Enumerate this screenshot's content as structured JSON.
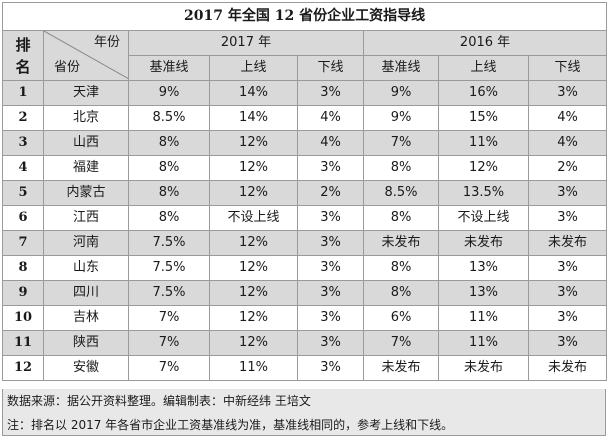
{
  "title": "2017 年全国 12 省份企业工资指导线",
  "header": {
    "rank_label_1": "排",
    "rank_label_2": "名",
    "diag_year": "年份",
    "diag_province": "省份",
    "year_2017": "2017 年",
    "year_2016": "2016 年",
    "sub": [
      "基准线",
      "上线",
      "下线",
      "基准线",
      "上线",
      "下线"
    ]
  },
  "rows": [
    {
      "rank": "1",
      "province": "天津",
      "v": [
        "9%",
        "14%",
        "3%",
        "9%",
        "16%",
        "3%"
      ]
    },
    {
      "rank": "2",
      "province": "北京",
      "v": [
        "8.5%",
        "14%",
        "4%",
        "9%",
        "15%",
        "4%"
      ]
    },
    {
      "rank": "3",
      "province": "山西",
      "v": [
        "8%",
        "12%",
        "4%",
        "7%",
        "11%",
        "4%"
      ]
    },
    {
      "rank": "4",
      "province": "福建",
      "v": [
        "8%",
        "12%",
        "3%",
        "8%",
        "12%",
        "2%"
      ]
    },
    {
      "rank": "5",
      "province": "内蒙古",
      "v": [
        "8%",
        "12%",
        "2%",
        "8.5%",
        "13.5%",
        "3%"
      ]
    },
    {
      "rank": "6",
      "province": "江西",
      "v": [
        "8%",
        "不设上线",
        "3%",
        "8%",
        "不设上线",
        "3%"
      ]
    },
    {
      "rank": "7",
      "province": "河南",
      "v": [
        "7.5%",
        "12%",
        "3%",
        "未发布",
        "未发布",
        "未发布"
      ]
    },
    {
      "rank": "8",
      "province": "山东",
      "v": [
        "7.5%",
        "12%",
        "3%",
        "8%",
        "13%",
        "3%"
      ]
    },
    {
      "rank": "9",
      "province": "四川",
      "v": [
        "7.5%",
        "12%",
        "3%",
        "8%",
        "13%",
        "3%"
      ]
    },
    {
      "rank": "10",
      "province": "吉林",
      "v": [
        "7%",
        "12%",
        "3%",
        "6%",
        "11%",
        "3%"
      ]
    },
    {
      "rank": "11",
      "province": "陕西",
      "v": [
        "7%",
        "12%",
        "3%",
        "7%",
        "11%",
        "3%"
      ]
    },
    {
      "rank": "12",
      "province": "安徽",
      "v": [
        "7%",
        "11%",
        "3%",
        "未发布",
        "未发布",
        "未发布"
      ]
    }
  ],
  "footer": {
    "source": "数据来源：据公开资料整理。编辑制表：中新经纬 王培文",
    "note": "注：排名以 2017 年各省市企业工资基准线为准，基准线相同的，参考上线和下线。"
  }
}
